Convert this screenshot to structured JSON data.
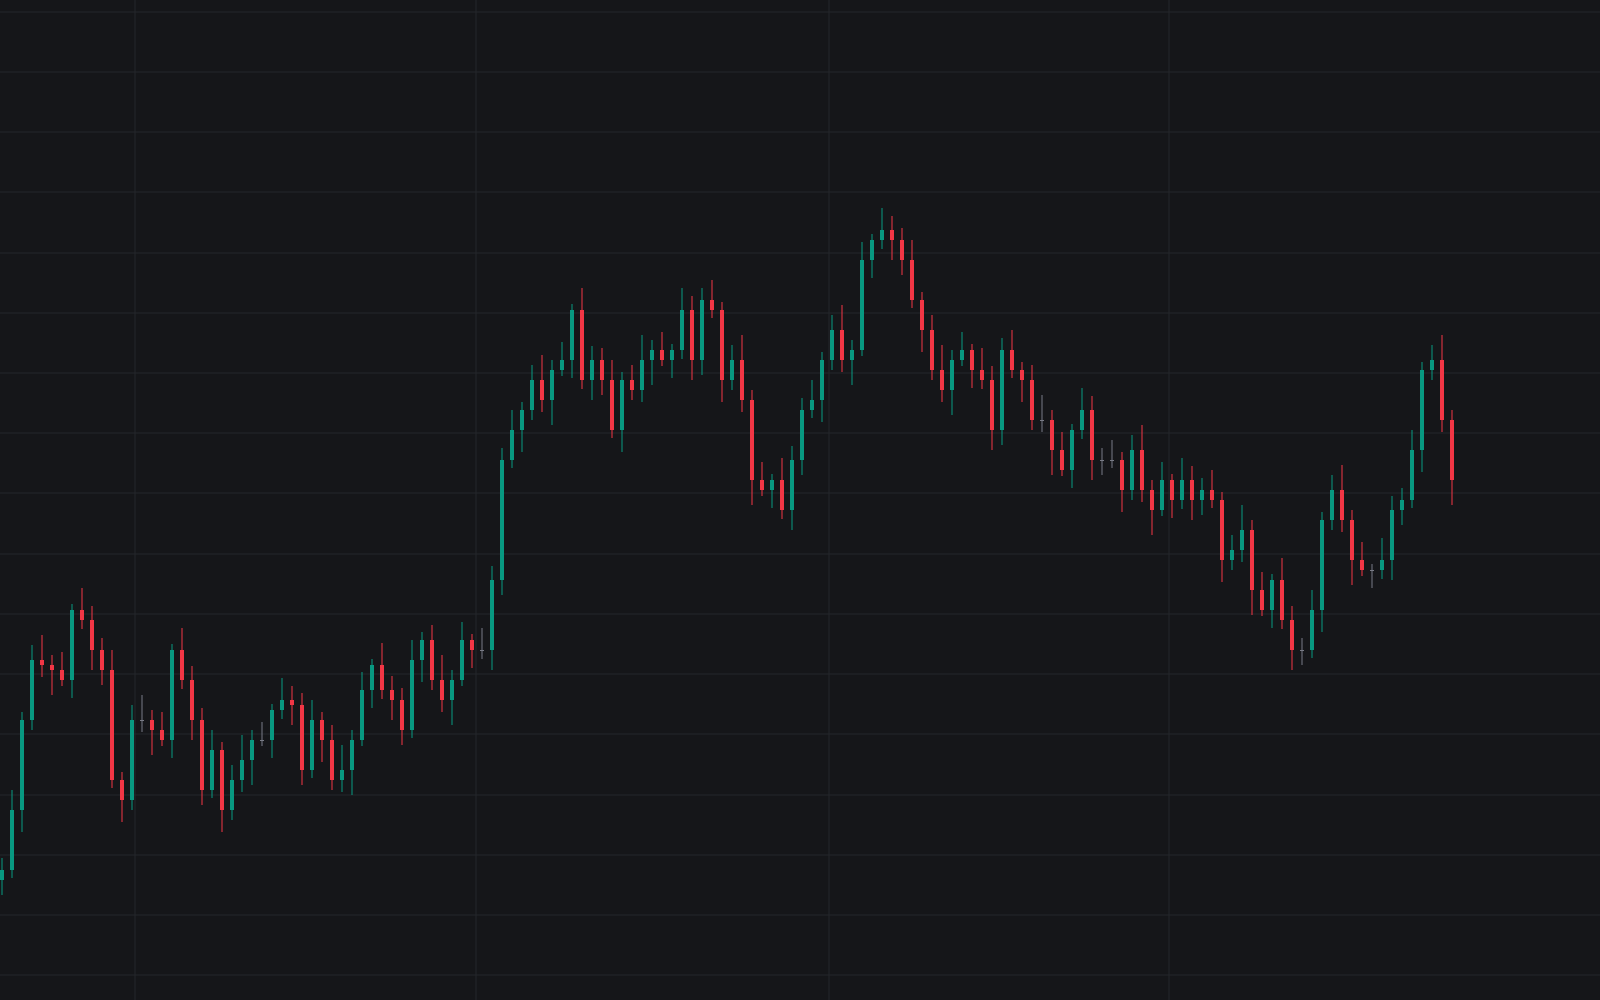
{
  "chart_data": {
    "type": "candlestick",
    "up_color": "#089981",
    "down_color": "#f23645",
    "flat_color": "#787b86",
    "background": "#151619",
    "grid_color": "#24262b",
    "grid": true,
    "xlim": [
      -0.2,
      159.8
    ],
    "xticks": [
      13.3,
      47.4,
      82.7,
      116.7
    ],
    "ylim": [
      0,
      1000
    ],
    "yticks": [
      25,
      85,
      145,
      205,
      266,
      326,
      386,
      446,
      507,
      567,
      627,
      687,
      747,
      808,
      868,
      928,
      988
    ],
    "open": [
      120,
      130,
      190,
      280,
      340,
      335,
      330,
      320,
      390,
      380,
      350,
      330,
      220,
      200,
      280,
      280,
      270,
      260,
      350,
      320,
      280,
      210,
      250,
      190,
      220,
      240,
      260,
      260,
      290,
      300,
      295,
      230,
      280,
      260,
      220,
      230,
      260,
      310,
      335,
      310,
      300,
      270,
      340,
      360,
      320,
      300,
      320,
      360,
      350,
      350,
      420,
      540,
      570,
      590,
      620,
      600,
      630,
      640,
      690,
      620,
      640,
      620,
      570,
      620,
      610,
      640,
      650,
      640,
      650,
      690,
      640,
      700,
      690,
      620,
      640,
      600,
      520,
      510,
      520,
      490,
      540,
      590,
      600,
      640,
      670,
      640,
      650,
      740,
      760,
      770,
      760,
      740,
      700,
      670,
      630,
      610,
      640,
      650,
      630,
      620,
      570,
      650,
      630,
      620,
      580,
      580,
      550,
      530,
      570,
      590,
      540,
      540,
      540,
      510,
      550,
      510,
      490,
      520,
      500,
      520,
      500,
      510,
      500,
      440,
      450,
      470,
      410,
      390,
      420,
      380,
      350,
      350,
      390,
      480,
      510,
      480,
      440,
      430,
      430,
      440,
      490,
      500,
      550,
      630,
      640,
      580
    ],
    "high": [
      142,
      210,
      288,
      355,
      365,
      345,
      348,
      396,
      412,
      394,
      362,
      350,
      228,
      295,
      305,
      290,
      288,
      356,
      372,
      334,
      292,
      270,
      258,
      235,
      265,
      270,
      278,
      296,
      322,
      314,
      307,
      300,
      288,
      275,
      255,
      270,
      328,
      341,
      357,
      324,
      312,
      360,
      368,
      375,
      345,
      330,
      378,
      366,
      372,
      434,
      552,
      590,
      598,
      635,
      645,
      640,
      658,
      696,
      712,
      654,
      652,
      640,
      628,
      635,
      665,
      660,
      668,
      656,
      712,
      704,
      712,
      720,
      698,
      655,
      665,
      610,
      538,
      526,
      542,
      554,
      602,
      620,
      648,
      685,
      695,
      660,
      758,
      766,
      792,
      784,
      772,
      760,
      708,
      685,
      655,
      650,
      668,
      656,
      652,
      634,
      662,
      670,
      638,
      635,
      605,
      590,
      568,
      576,
      612,
      604,
      552,
      560,
      548,
      565,
      575,
      520,
      538,
      526,
      542,
      534,
      522,
      530,
      508,
      465,
      495,
      480,
      428,
      426,
      442,
      394,
      362,
      410,
      488,
      525,
      535,
      490,
      458,
      436,
      462,
      504,
      512,
      570,
      638,
      655,
      665,
      590
    ],
    "low": [
      105,
      122,
      168,
      270,
      323,
      305,
      314,
      302,
      371,
      330,
      315,
      212,
      178,
      190,
      268,
      245,
      254,
      242,
      311,
      260,
      195,
      202,
      168,
      180,
      208,
      215,
      254,
      242,
      281,
      275,
      215,
      222,
      238,
      210,
      208,
      205,
      254,
      292,
      301,
      280,
      255,
      262,
      318,
      310,
      288,
      275,
      314,
      332,
      341,
      330,
      405,
      532,
      548,
      580,
      588,
      575,
      624,
      622,
      611,
      600,
      605,
      562,
      548,
      600,
      598,
      615,
      634,
      622,
      641,
      620,
      625,
      682,
      598,
      610,
      588,
      495,
      504,
      492,
      481,
      470,
      525,
      582,
      578,
      630,
      628,
      615,
      644,
      722,
      751,
      740,
      725,
      692,
      648,
      620,
      598,
      585,
      634,
      612,
      611,
      550,
      555,
      622,
      598,
      570,
      568,
      525,
      524,
      512,
      561,
      520,
      525,
      532,
      488,
      500,
      498,
      465,
      484,
      482,
      491,
      480,
      485,
      492,
      418,
      430,
      438,
      385,
      384,
      372,
      371,
      330,
      335,
      342,
      368,
      470,
      468,
      415,
      424,
      412,
      421,
      420,
      475,
      492,
      528,
      620,
      568,
      495
    ],
    "close": [
      130,
      190,
      280,
      340,
      335,
      330,
      320,
      390,
      380,
      350,
      330,
      220,
      200,
      280,
      280,
      270,
      260,
      350,
      320,
      280,
      210,
      250,
      190,
      220,
      240,
      260,
      260,
      290,
      300,
      295,
      230,
      280,
      260,
      220,
      230,
      260,
      310,
      335,
      310,
      300,
      270,
      340,
      360,
      320,
      300,
      320,
      360,
      350,
      350,
      420,
      540,
      570,
      590,
      620,
      600,
      630,
      640,
      690,
      620,
      640,
      620,
      570,
      620,
      610,
      640,
      650,
      640,
      650,
      690,
      640,
      700,
      690,
      620,
      640,
      600,
      520,
      510,
      520,
      490,
      540,
      590,
      600,
      640,
      670,
      640,
      650,
      740,
      760,
      770,
      760,
      740,
      700,
      670,
      630,
      610,
      640,
      650,
      630,
      620,
      570,
      650,
      630,
      620,
      580,
      580,
      550,
      530,
      570,
      590,
      540,
      540,
      540,
      510,
      550,
      510,
      490,
      520,
      500,
      520,
      500,
      510,
      500,
      440,
      450,
      470,
      410,
      390,
      420,
      380,
      350,
      350,
      390,
      480,
      510,
      480,
      440,
      430,
      430,
      440,
      490,
      500,
      550,
      630,
      640,
      580,
      520
    ]
  }
}
